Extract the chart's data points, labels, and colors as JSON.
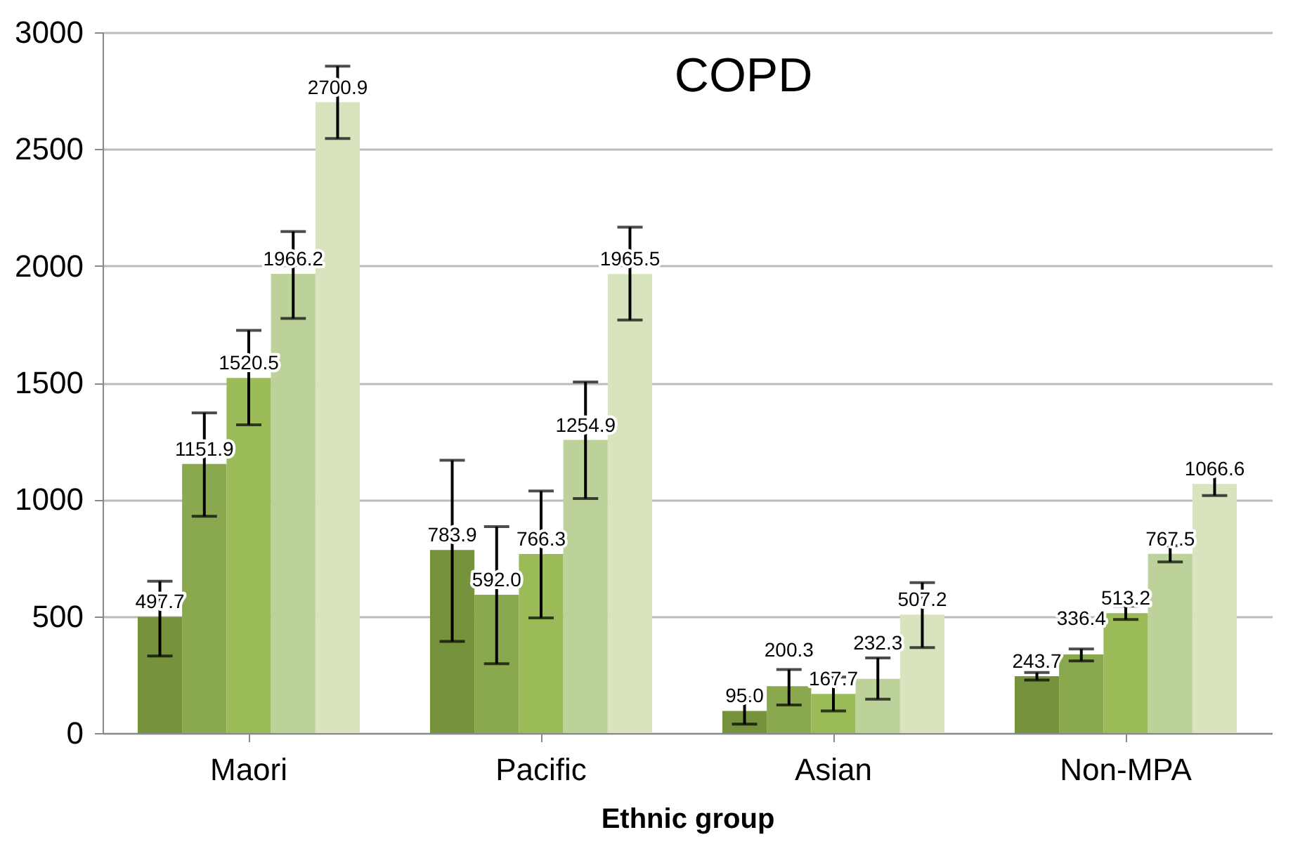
{
  "chart_data": {
    "type": "bar",
    "title": "COPD",
    "xlabel": "Ethnic group",
    "categories": [
      "Maori",
      "Pacific",
      "Asian",
      "Non-MPA"
    ],
    "series": [
      {
        "color": "#76923c",
        "values": [
          497.7,
          783.9,
          95.0,
          243.7
        ],
        "value_labels": [
          "497.7",
          "783.9",
          "95.0",
          "243.7"
        ],
        "errors": [
          [
            330,
            650
          ],
          [
            392,
            1168
          ],
          [
            38,
            152
          ],
          [
            227,
            259
          ]
        ]
      },
      {
        "color": "#8aa84e",
        "values": [
          1151.9,
          592.0,
          200.3,
          336.4
        ],
        "value_labels": [
          "1151.9",
          "592.0",
          "200.3",
          "336.4"
        ],
        "errors": [
          [
            928,
            1371
          ],
          [
            297,
            884
          ],
          [
            120,
            272
          ],
          [
            309,
            360
          ]
        ]
      },
      {
        "color": "#9bbb59",
        "values": [
          1520.5,
          766.3,
          167.7,
          513.2
        ],
        "value_labels": [
          "1520.5",
          "766.3",
          "167.7",
          "513.2"
        ],
        "errors": [
          [
            1320,
            1724
          ],
          [
            493,
            1036
          ],
          [
            95,
            240
          ],
          [
            486,
            543
          ]
        ]
      },
      {
        "color": "#bdd19b",
        "values": [
          1966.2,
          1254.9,
          232.3,
          767.5
        ],
        "value_labels": [
          "1966.2",
          "1254.9",
          "232.3",
          "767.5"
        ],
        "errors": [
          [
            1775,
            2147
          ],
          [
            1004,
            1503
          ],
          [
            145,
            322
          ],
          [
            733,
            802
          ]
        ]
      },
      {
        "color": "#d7e4bd",
        "values": [
          2700.9,
          1965.5,
          507.2,
          1066.6
        ],
        "value_labels": [
          "2700.9",
          "1965.5",
          "507.2",
          "1066.6"
        ],
        "errors": [
          [
            2545,
            2855
          ],
          [
            1768,
            2166
          ],
          [
            366,
            644
          ],
          [
            1017,
            1118
          ]
        ]
      }
    ],
    "ylim": [
      0,
      3000
    ],
    "yticks": [
      0,
      500,
      1000,
      1500,
      2000,
      2500,
      3000
    ],
    "grid": "y",
    "legend": false
  }
}
